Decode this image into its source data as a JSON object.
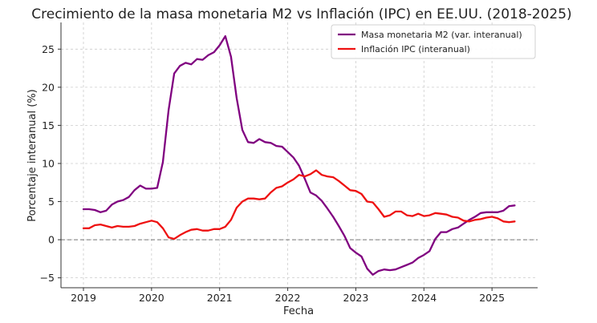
{
  "chart_data": {
    "type": "line",
    "title": "Crecimiento de la masa monetaria M2 vs Inflación (IPC) en EE.UU. (2018-2025)",
    "xlabel": "Fecha",
    "ylabel": "Porcentaje interanual (%)",
    "xlim": [
      2018.67,
      2025.67
    ],
    "ylim": [
      -6.3,
      28.5
    ],
    "xticks": [
      2019,
      2020,
      2021,
      2022,
      2023,
      2024,
      2025
    ],
    "yticks": [
      -5,
      0,
      5,
      10,
      15,
      20,
      25
    ],
    "grid": true,
    "legend_position": "top-right",
    "reference_line": {
      "y": 0,
      "style": "dashed",
      "color": "#777777"
    },
    "series": [
      {
        "name": "Masa monetaria M2 (var. interanual)",
        "color": "#800080",
        "points": [
          [
            2019.0,
            4.0
          ],
          [
            2019.083,
            4.0
          ],
          [
            2019.167,
            3.9
          ],
          [
            2019.25,
            3.6
          ],
          [
            2019.333,
            3.8
          ],
          [
            2019.417,
            4.6
          ],
          [
            2019.5,
            5.0
          ],
          [
            2019.583,
            5.2
          ],
          [
            2019.667,
            5.6
          ],
          [
            2019.75,
            6.5
          ],
          [
            2019.833,
            7.1
          ],
          [
            2019.917,
            6.7
          ],
          [
            2020.0,
            6.7
          ],
          [
            2020.083,
            6.8
          ],
          [
            2020.167,
            10.2
          ],
          [
            2020.25,
            17.0
          ],
          [
            2020.333,
            21.8
          ],
          [
            2020.417,
            22.8
          ],
          [
            2020.5,
            23.2
          ],
          [
            2020.583,
            23.0
          ],
          [
            2020.667,
            23.7
          ],
          [
            2020.75,
            23.6
          ],
          [
            2020.833,
            24.2
          ],
          [
            2020.917,
            24.6
          ],
          [
            2021.0,
            25.5
          ],
          [
            2021.083,
            26.7
          ],
          [
            2021.167,
            24.0
          ],
          [
            2021.25,
            18.6
          ],
          [
            2021.333,
            14.4
          ],
          [
            2021.417,
            12.8
          ],
          [
            2021.5,
            12.7
          ],
          [
            2021.583,
            13.2
          ],
          [
            2021.667,
            12.8
          ],
          [
            2021.75,
            12.7
          ],
          [
            2021.833,
            12.3
          ],
          [
            2021.917,
            12.2
          ],
          [
            2022.0,
            11.5
          ],
          [
            2022.083,
            10.8
          ],
          [
            2022.167,
            9.7
          ],
          [
            2022.25,
            8.0
          ],
          [
            2022.333,
            6.2
          ],
          [
            2022.417,
            5.8
          ],
          [
            2022.5,
            5.1
          ],
          [
            2022.583,
            4.1
          ],
          [
            2022.667,
            3.0
          ],
          [
            2022.75,
            1.8
          ],
          [
            2022.833,
            0.5
          ],
          [
            2022.917,
            -1.1
          ],
          [
            2023.0,
            -1.7
          ],
          [
            2023.083,
            -2.2
          ],
          [
            2023.167,
            -3.8
          ],
          [
            2023.25,
            -4.6
          ],
          [
            2023.333,
            -4.1
          ],
          [
            2023.417,
            -3.9
          ],
          [
            2023.5,
            -4.0
          ],
          [
            2023.583,
            -3.9
          ],
          [
            2023.667,
            -3.6
          ],
          [
            2023.75,
            -3.3
          ],
          [
            2023.833,
            -3.0
          ],
          [
            2023.917,
            -2.4
          ],
          [
            2024.0,
            -2.0
          ],
          [
            2024.083,
            -1.5
          ],
          [
            2024.167,
            0.1
          ],
          [
            2024.25,
            1.0
          ],
          [
            2024.333,
            1.0
          ],
          [
            2024.417,
            1.4
          ],
          [
            2024.5,
            1.6
          ],
          [
            2024.583,
            2.1
          ],
          [
            2024.667,
            2.6
          ],
          [
            2024.75,
            3.0
          ],
          [
            2024.833,
            3.5
          ],
          [
            2024.917,
            3.6
          ],
          [
            2025.0,
            3.6
          ],
          [
            2025.083,
            3.6
          ],
          [
            2025.167,
            3.8
          ],
          [
            2025.25,
            4.4
          ],
          [
            2025.333,
            4.5
          ]
        ]
      },
      {
        "name": "Inflación IPC (interanual)",
        "color": "#ee1111",
        "points": [
          [
            2019.0,
            1.5
          ],
          [
            2019.083,
            1.5
          ],
          [
            2019.167,
            1.9
          ],
          [
            2019.25,
            2.0
          ],
          [
            2019.333,
            1.8
          ],
          [
            2019.417,
            1.6
          ],
          [
            2019.5,
            1.8
          ],
          [
            2019.583,
            1.7
          ],
          [
            2019.667,
            1.7
          ],
          [
            2019.75,
            1.8
          ],
          [
            2019.833,
            2.1
          ],
          [
            2019.917,
            2.3
          ],
          [
            2020.0,
            2.5
          ],
          [
            2020.083,
            2.3
          ],
          [
            2020.167,
            1.5
          ],
          [
            2020.25,
            0.3
          ],
          [
            2020.333,
            0.1
          ],
          [
            2020.417,
            0.6
          ],
          [
            2020.5,
            1.0
          ],
          [
            2020.583,
            1.3
          ],
          [
            2020.667,
            1.4
          ],
          [
            2020.75,
            1.2
          ],
          [
            2020.833,
            1.2
          ],
          [
            2020.917,
            1.4
          ],
          [
            2021.0,
            1.4
          ],
          [
            2021.083,
            1.7
          ],
          [
            2021.167,
            2.6
          ],
          [
            2021.25,
            4.2
          ],
          [
            2021.333,
            5.0
          ],
          [
            2021.417,
            5.4
          ],
          [
            2021.5,
            5.4
          ],
          [
            2021.583,
            5.3
          ],
          [
            2021.667,
            5.4
          ],
          [
            2021.75,
            6.2
          ],
          [
            2021.833,
            6.8
          ],
          [
            2021.917,
            7.0
          ],
          [
            2022.0,
            7.5
          ],
          [
            2022.083,
            7.9
          ],
          [
            2022.167,
            8.5
          ],
          [
            2022.25,
            8.3
          ],
          [
            2022.333,
            8.6
          ],
          [
            2022.417,
            9.1
          ],
          [
            2022.5,
            8.5
          ],
          [
            2022.583,
            8.3
          ],
          [
            2022.667,
            8.2
          ],
          [
            2022.75,
            7.7
          ],
          [
            2022.833,
            7.1
          ],
          [
            2022.917,
            6.5
          ],
          [
            2023.0,
            6.4
          ],
          [
            2023.083,
            6.0
          ],
          [
            2023.167,
            5.0
          ],
          [
            2023.25,
            4.9
          ],
          [
            2023.333,
            4.0
          ],
          [
            2023.417,
            3.0
          ],
          [
            2023.5,
            3.2
          ],
          [
            2023.583,
            3.7
          ],
          [
            2023.667,
            3.7
          ],
          [
            2023.75,
            3.2
          ],
          [
            2023.833,
            3.1
          ],
          [
            2023.917,
            3.4
          ],
          [
            2024.0,
            3.1
          ],
          [
            2024.083,
            3.2
          ],
          [
            2024.167,
            3.5
          ],
          [
            2024.25,
            3.4
          ],
          [
            2024.333,
            3.3
          ],
          [
            2024.417,
            3.0
          ],
          [
            2024.5,
            2.9
          ],
          [
            2024.583,
            2.5
          ],
          [
            2024.667,
            2.4
          ],
          [
            2024.75,
            2.6
          ],
          [
            2024.833,
            2.7
          ],
          [
            2024.917,
            2.9
          ],
          [
            2025.0,
            3.0
          ],
          [
            2025.083,
            2.8
          ],
          [
            2025.167,
            2.4
          ],
          [
            2025.25,
            2.3
          ],
          [
            2025.333,
            2.4
          ]
        ]
      }
    ]
  }
}
